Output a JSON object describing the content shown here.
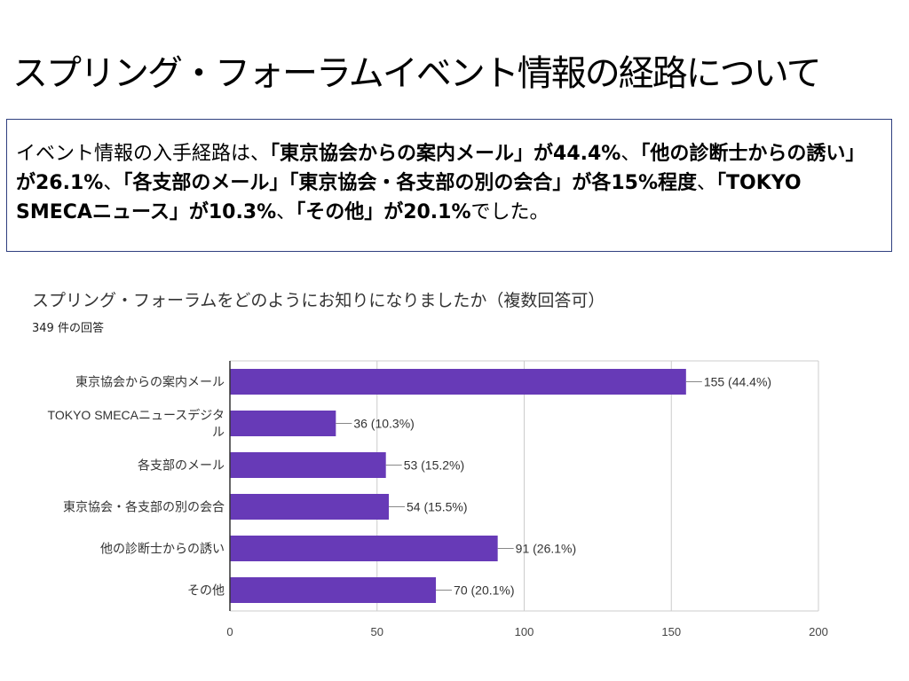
{
  "slide": {
    "title": "スプリング・フォーラムイベント情報の経路について"
  },
  "summary": {
    "segments": [
      {
        "text": "イベント情報の入手経路は、",
        "bold": false
      },
      {
        "text": "「東京協会からの案内メール」が44.4%",
        "bold": true
      },
      {
        "text": "、",
        "bold": false
      },
      {
        "text": "「他の診断士からの誘い」が26.1%",
        "bold": true
      },
      {
        "text": "、",
        "bold": false
      },
      {
        "text": "「各支部のメール」「東京協会・各支部の別の会合」が各15%程度",
        "bold": true
      },
      {
        "text": "、",
        "bold": false
      },
      {
        "text": "「TOKYO SMECAニュース」が10.3%",
        "bold": true
      },
      {
        "text": "、",
        "bold": false
      },
      {
        "text": "「その他」が20.1%",
        "bold": true
      },
      {
        "text": "でした。",
        "bold": false
      }
    ]
  },
  "survey": {
    "question": "スプリング・フォーラムをどのようにお知りになりましたか（複数回答可）",
    "response_count": "349 件の回答"
  },
  "chart_data": {
    "type": "bar",
    "orientation": "horizontal",
    "categories": [
      [
        "東京協会からの案内メール"
      ],
      [
        "TOKYO SMECAニュースデジタ",
        "ル"
      ],
      [
        "各支部のメール"
      ],
      [
        "東京協会・各支部の別の会合"
      ],
      [
        "他の診断士からの誘い"
      ],
      [
        "その他"
      ]
    ],
    "values": [
      155,
      36,
      53,
      54,
      91,
      70
    ],
    "data_labels": [
      "155 (44.4%)",
      "36 (10.3%)",
      "53 (15.2%)",
      "54 (15.5%)",
      "91 (26.1%)",
      "70 (20.1%)"
    ],
    "xlim": [
      0,
      200
    ],
    "xticks": [
      0,
      50,
      100,
      150,
      200
    ],
    "grid": true,
    "bar_color": "#673ab7"
  }
}
